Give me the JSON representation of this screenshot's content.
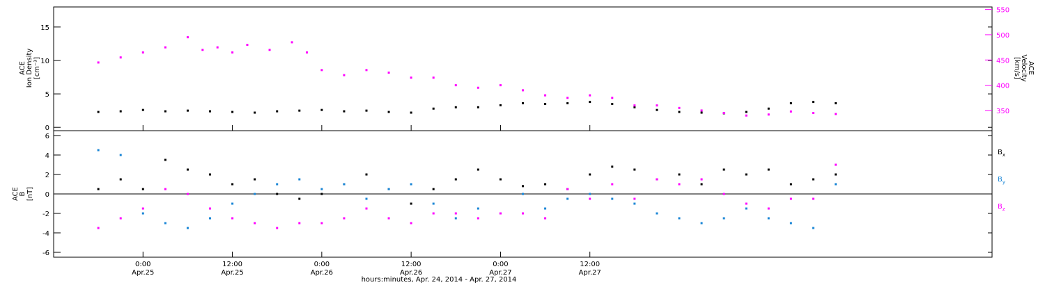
{
  "chart_data": [
    {
      "type": "scatter",
      "ylabel_left": [
        "ACE",
        "Ion Density",
        "[cm⁻³]"
      ],
      "ylabel_right": [
        "ACE",
        "Velocity",
        "[km/s]"
      ],
      "ylim_left": [
        -0.5,
        18
      ],
      "yticks_left": [
        "0",
        "5",
        "10",
        "15"
      ],
      "ylim_right": [
        310,
        555
      ],
      "yticks_right": [
        "350",
        "400",
        "450",
        "500",
        "550"
      ],
      "series": [
        {
          "axis": "left",
          "color": "#000000",
          "points": [
            [
              -6,
              2.3
            ],
            [
              -3,
              2.4
            ],
            [
              0,
              2.6
            ],
            [
              3,
              2.4
            ],
            [
              6,
              2.5
            ],
            [
              9,
              2.4
            ],
            [
              12,
              2.3
            ],
            [
              15,
              2.2
            ],
            [
              18,
              2.4
            ],
            [
              21,
              2.5
            ],
            [
              24,
              2.6
            ],
            [
              27,
              2.4
            ],
            [
              30,
              2.5
            ],
            [
              33,
              2.3
            ],
            [
              36,
              2.2
            ],
            [
              39,
              2.8
            ],
            [
              42,
              3.0
            ],
            [
              45,
              3.0
            ],
            [
              48,
              3.3
            ],
            [
              51,
              3.6
            ],
            [
              54,
              3.5
            ],
            [
              57,
              3.6
            ],
            [
              60,
              3.8
            ],
            [
              63,
              3.5
            ],
            [
              66,
              3.0
            ],
            [
              69,
              2.6
            ],
            [
              72,
              2.3
            ],
            [
              75,
              2.2
            ],
            [
              78,
              2.1
            ],
            [
              81,
              2.3
            ],
            [
              84,
              2.8
            ],
            [
              87,
              3.6
            ],
            [
              90,
              3.8
            ],
            [
              93,
              3.6
            ]
          ]
        },
        {
          "axis": "right",
          "color": "#ff00ff",
          "points": [
            [
              -6,
              445
            ],
            [
              -3,
              455
            ],
            [
              0,
              465
            ],
            [
              3,
              475
            ],
            [
              6,
              495
            ],
            [
              8,
              470
            ],
            [
              10,
              475
            ],
            [
              12,
              465
            ],
            [
              14,
              480
            ],
            [
              17,
              470
            ],
            [
              20,
              485
            ],
            [
              22,
              465
            ],
            [
              24,
              430
            ],
            [
              27,
              420
            ],
            [
              30,
              430
            ],
            [
              33,
              425
            ],
            [
              36,
              415
            ],
            [
              39,
              415
            ],
            [
              42,
              400
            ],
            [
              45,
              395
            ],
            [
              48,
              400
            ],
            [
              51,
              390
            ],
            [
              54,
              380
            ],
            [
              57,
              375
            ],
            [
              60,
              380
            ],
            [
              63,
              375
            ],
            [
              66,
              360
            ],
            [
              69,
              360
            ],
            [
              72,
              355
            ],
            [
              75,
              350
            ],
            [
              78,
              345
            ],
            [
              81,
              340
            ],
            [
              84,
              342
            ],
            [
              87,
              348
            ],
            [
              90,
              345
            ],
            [
              93,
              343
            ]
          ]
        }
      ]
    },
    {
      "type": "scatter",
      "ylabel": [
        "ACE",
        "B",
        "[nT]"
      ],
      "ylim": [
        -6.5,
        6.5
      ],
      "yticks": [
        "-6",
        "-4",
        "-2",
        "0",
        "2",
        "4",
        "6"
      ],
      "legend": [
        "B",
        "B",
        "B"
      ],
      "legend_subscripts": [
        "x",
        "y",
        "z"
      ],
      "legend_colors": [
        "#000000",
        "#1a86d6",
        "#ff00ff"
      ],
      "series": [
        {
          "color": "#000000",
          "points": [
            [
              -6,
              0.5
            ],
            [
              -3,
              1.5
            ],
            [
              0,
              0.5
            ],
            [
              3,
              3.5
            ],
            [
              6,
              2.5
            ],
            [
              9,
              2.0
            ],
            [
              12,
              1.0
            ],
            [
              15,
              1.5
            ],
            [
              18,
              0.0
            ],
            [
              21,
              -0.5
            ],
            [
              24,
              0.0
            ],
            [
              27,
              1.0
            ],
            [
              30,
              2.0
            ],
            [
              33,
              0.5
            ],
            [
              36,
              -1.0
            ],
            [
              39,
              0.5
            ],
            [
              42,
              1.5
            ],
            [
              45,
              2.5
            ],
            [
              48,
              1.5
            ],
            [
              51,
              0.8
            ],
            [
              54,
              1.0
            ],
            [
              57,
              0.5
            ],
            [
              60,
              2.0
            ],
            [
              63,
              2.8
            ],
            [
              66,
              2.5
            ],
            [
              69,
              1.5
            ],
            [
              72,
              2.0
            ],
            [
              75,
              1.0
            ],
            [
              78,
              2.5
            ],
            [
              81,
              2.0
            ],
            [
              84,
              2.5
            ],
            [
              87,
              1.0
            ],
            [
              90,
              1.5
            ],
            [
              93,
              2.0
            ]
          ]
        },
        {
          "color": "#1a86d6",
          "points": [
            [
              -6,
              4.5
            ],
            [
              -3,
              4.0
            ],
            [
              0,
              -2.0
            ],
            [
              3,
              -3.0
            ],
            [
              6,
              -3.5
            ],
            [
              9,
              -2.5
            ],
            [
              12,
              -1.0
            ],
            [
              15,
              0.0
            ],
            [
              18,
              1.0
            ],
            [
              21,
              1.5
            ],
            [
              24,
              0.5
            ],
            [
              27,
              1.0
            ],
            [
              30,
              -0.5
            ],
            [
              33,
              0.5
            ],
            [
              36,
              1.0
            ],
            [
              39,
              -1.0
            ],
            [
              42,
              -2.5
            ],
            [
              45,
              -1.5
            ],
            [
              48,
              -2.0
            ],
            [
              51,
              0.0
            ],
            [
              54,
              -1.5
            ],
            [
              57,
              -0.5
            ],
            [
              60,
              0.0
            ],
            [
              63,
              -0.5
            ],
            [
              66,
              -1.0
            ],
            [
              69,
              -2.0
            ],
            [
              72,
              -2.5
            ],
            [
              75,
              -3.0
            ],
            [
              78,
              -2.5
            ],
            [
              81,
              -1.5
            ],
            [
              84,
              -2.5
            ],
            [
              87,
              -3.0
            ],
            [
              90,
              -3.5
            ],
            [
              93,
              1.0
            ]
          ]
        },
        {
          "color": "#ff00ff",
          "points": [
            [
              -6,
              -3.5
            ],
            [
              -3,
              -2.5
            ],
            [
              0,
              -1.5
            ],
            [
              3,
              0.5
            ],
            [
              6,
              0.0
            ],
            [
              9,
              -1.5
            ],
            [
              12,
              -2.5
            ],
            [
              15,
              -3.0
            ],
            [
              18,
              -3.5
            ],
            [
              21,
              -3.0
            ],
            [
              24,
              -3.0
            ],
            [
              27,
              -2.5
            ],
            [
              30,
              -1.5
            ],
            [
              33,
              -2.5
            ],
            [
              36,
              -3.0
            ],
            [
              39,
              -2.0
            ],
            [
              42,
              -2.0
            ],
            [
              45,
              -2.5
            ],
            [
              48,
              -2.0
            ],
            [
              51,
              -2.0
            ],
            [
              54,
              -2.5
            ],
            [
              57,
              0.5
            ],
            [
              60,
              -0.5
            ],
            [
              63,
              1.0
            ],
            [
              66,
              -0.5
            ],
            [
              69,
              1.5
            ],
            [
              72,
              1.0
            ],
            [
              75,
              1.5
            ],
            [
              78,
              0.0
            ],
            [
              81,
              -1.0
            ],
            [
              84,
              -1.5
            ],
            [
              87,
              -0.5
            ],
            [
              90,
              -0.5
            ],
            [
              93,
              3.0
            ]
          ]
        }
      ]
    }
  ],
  "x_axis": {
    "xlabel": "hours:minutes, Apr. 24, 2014 - Apr. 27, 2014",
    "xlim_hours_from_apr25_0000": [
      -12,
      114
    ],
    "ticks": [
      {
        "hours": 0,
        "time": "0:00",
        "date": "Apr.25"
      },
      {
        "hours": 12,
        "time": "12:00",
        "date": "Apr.25"
      },
      {
        "hours": 24,
        "time": "0:00",
        "date": "Apr.26"
      },
      {
        "hours": 36,
        "time": "12:00",
        "date": "Apr.26"
      },
      {
        "hours": 48,
        "time": "0:00",
        "date": "Apr.27"
      },
      {
        "hours": 60,
        "time": "12:00",
        "date": "Apr.27"
      }
    ]
  }
}
